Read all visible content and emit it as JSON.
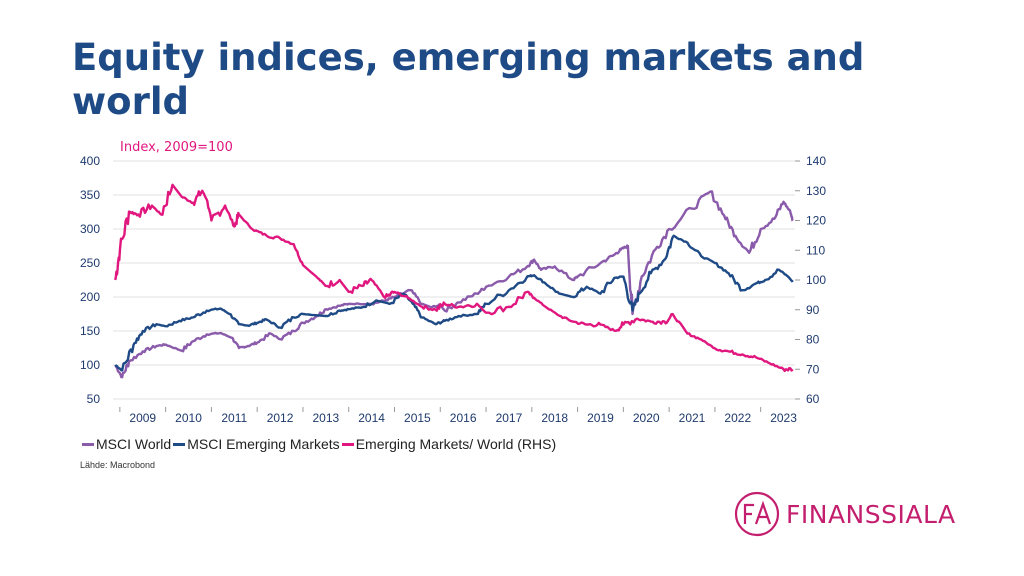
{
  "title": "Equity indices, emerging markets and world",
  "unit_label": "Index, 2009=100",
  "source": "Lähde: Macrobond",
  "logo": {
    "text": "FINANSSIALA",
    "color": "#c41e6e"
  },
  "chart_data": {
    "type": "line",
    "title": "Equity indices, emerging markets and world",
    "ylabel": "Index, 2009=100",
    "xlim": [
      2008.85,
      2023.75
    ],
    "ylim": [
      50,
      400
    ],
    "y2lim": [
      60,
      140
    ],
    "yticks": [
      50,
      100,
      150,
      200,
      250,
      300,
      350,
      400
    ],
    "y2ticks": [
      60,
      70,
      80,
      90,
      100,
      110,
      120,
      130,
      140
    ],
    "categories": [
      "2009",
      "2010",
      "2011",
      "2012",
      "2013",
      "2014",
      "2015",
      "2016",
      "2017",
      "2018",
      "2019",
      "2020",
      "2021",
      "2022",
      "2023"
    ],
    "grid": true,
    "legend_position": "bottom-left",
    "series": [
      {
        "name": "MSCI World",
        "axis": "left",
        "color": "#8a5aab",
        "x": [
          2008.9,
          2009.05,
          2009.2,
          2009.5,
          2009.8,
          2010.0,
          2010.35,
          2010.6,
          2010.9,
          2011.2,
          2011.45,
          2011.6,
          2011.8,
          2012.0,
          2012.3,
          2012.5,
          2012.8,
          2013.0,
          2013.3,
          2013.5,
          2013.8,
          2014.0,
          2014.5,
          2014.8,
          2015.0,
          2015.35,
          2015.6,
          2015.8,
          2016.0,
          2016.1,
          2016.4,
          2016.8,
          2017.0,
          2017.5,
          2017.9,
          2018.05,
          2018.2,
          2018.5,
          2018.9,
          2019.0,
          2019.5,
          2019.8,
          2019.95,
          2020.1,
          2020.2,
          2020.4,
          2020.7,
          2021.0,
          2021.5,
          2021.9,
          2022.2,
          2022.45,
          2022.75,
          2023.0,
          2023.3,
          2023.5,
          2023.65,
          2023.7
        ],
        "values": [
          100,
          82,
          105,
          120,
          128,
          130,
          121,
          135,
          145,
          147,
          140,
          125,
          128,
          133,
          146,
          138,
          150,
          162,
          172,
          182,
          187,
          190,
          190,
          195,
          200,
          210,
          190,
          185,
          188,
          180,
          192,
          205,
          215,
          230,
          245,
          255,
          240,
          245,
          225,
          230,
          250,
          262,
          270,
          275,
          175,
          230,
          270,
          300,
          330,
          355,
          320,
          290,
          265,
          300,
          315,
          340,
          325,
          312
        ]
      },
      {
        "name": "MSCI Emerging Markets",
        "axis": "left",
        "color": "#1e4a86",
        "x": [
          2008.9,
          2009.05,
          2009.3,
          2009.5,
          2009.8,
          2010.0,
          2010.3,
          2010.6,
          2010.9,
          2011.2,
          2011.4,
          2011.6,
          2011.8,
          2012.0,
          2012.2,
          2012.5,
          2012.8,
          2013.0,
          2013.5,
          2013.8,
          2014.0,
          2014.3,
          2014.6,
          2014.9,
          2015.2,
          2015.4,
          2015.6,
          2015.9,
          2016.1,
          2016.4,
          2016.8,
          2017.0,
          2017.5,
          2017.9,
          2018.05,
          2018.3,
          2018.6,
          2018.9,
          2019.2,
          2019.5,
          2019.8,
          2020.0,
          2020.2,
          2020.35,
          2020.6,
          2020.9,
          2021.1,
          2021.4,
          2021.7,
          2022.0,
          2022.3,
          2022.6,
          2022.9,
          2023.1,
          2023.4,
          2023.6,
          2023.7
        ],
        "values": [
          100,
          92,
          130,
          150,
          160,
          157,
          165,
          170,
          180,
          183,
          175,
          160,
          158,
          162,
          167,
          155,
          170,
          175,
          172,
          180,
          182,
          185,
          195,
          190,
          205,
          190,
          170,
          160,
          165,
          172,
          175,
          190,
          210,
          230,
          232,
          220,
          205,
          200,
          215,
          205,
          228,
          230,
          180,
          205,
          235,
          255,
          290,
          280,
          260,
          250,
          235,
          210,
          220,
          225,
          240,
          230,
          222
        ]
      },
      {
        "name": "Emerging Markets/ World (RHS)",
        "axis": "right",
        "color": "#e0177f",
        "x": [
          2008.9,
          2009.0,
          2009.2,
          2009.4,
          2009.7,
          2009.9,
          2010.15,
          2010.35,
          2010.6,
          2010.8,
          2010.9,
          2011.0,
          2011.3,
          2011.5,
          2011.6,
          2011.9,
          2012.2,
          2012.5,
          2012.8,
          2013.0,
          2013.3,
          2013.5,
          2013.8,
          2014.0,
          2014.3,
          2014.5,
          2014.8,
          2015.0,
          2015.3,
          2015.6,
          2015.9,
          2016.1,
          2016.4,
          2016.8,
          2017.0,
          2017.5,
          2017.9,
          2018.05,
          2018.3,
          2018.6,
          2018.9,
          2019.2,
          2019.5,
          2019.8,
          2020.0,
          2020.3,
          2020.6,
          2020.9,
          2021.1,
          2021.4,
          2021.7,
          2022.0,
          2022.3,
          2022.6,
          2022.9,
          2023.2,
          2023.5,
          2023.7
        ],
        "values": [
          100,
          110,
          123,
          122,
          125,
          122,
          132,
          128,
          126,
          130,
          127,
          120,
          125,
          118,
          122,
          117,
          115,
          114,
          112,
          105,
          101,
          98,
          100,
          96,
          98,
          100,
          94,
          96,
          94,
          91,
          90,
          92,
          91,
          92,
          89,
          91,
          96,
          94,
          91,
          88,
          86,
          85,
          85,
          83,
          85,
          87,
          86,
          86,
          88,
          82,
          80,
          77,
          76,
          75,
          74,
          72,
          70,
          70
        ]
      }
    ]
  }
}
